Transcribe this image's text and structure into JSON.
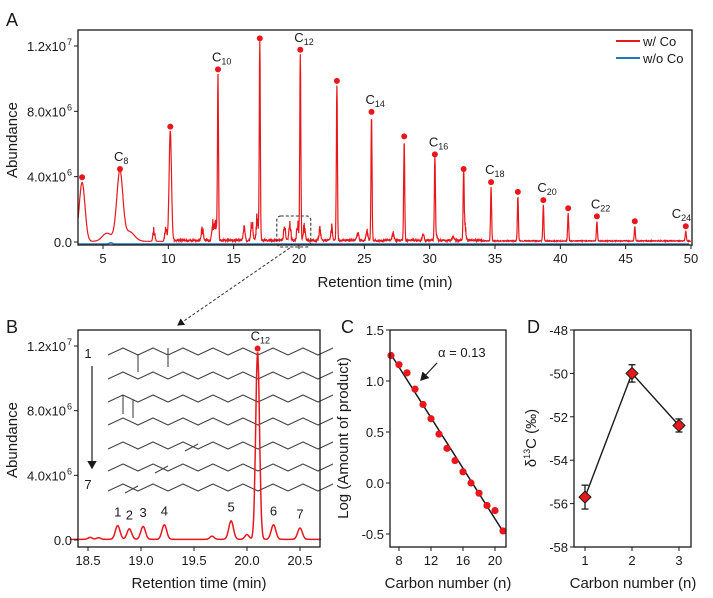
{
  "chart_data": [
    {
      "panel": "A",
      "type": "line",
      "xlabel": "Retention time (min)",
      "ylabel": "Abundance",
      "xlim": [
        3.1,
        50
      ],
      "ylim": [
        -0.2,
        1.27
      ],
      "y_unit_note": "values in units of 1e7",
      "xticks": [
        5,
        10,
        15,
        20,
        25,
        30,
        35,
        40,
        45,
        50
      ],
      "yticks": [
        {
          "value": 0.0,
          "label": "0.0",
          "exp": ""
        },
        {
          "value": 0.4,
          "label": "4.0x10",
          "exp": "6"
        },
        {
          "value": 0.8,
          "label": "8.0x10",
          "exp": "6"
        },
        {
          "value": 1.2,
          "label": "1.2x10",
          "exp": "7"
        }
      ],
      "legend": {
        "placement": "top-right",
        "entries": [
          {
            "name": "w/ Co",
            "color": "#e8171c"
          },
          {
            "name": "w/o Co",
            "color": "#1f77b4"
          }
        ]
      },
      "peaks": [
        {
          "x": 3.4,
          "y": 0.36,
          "label": "",
          "sub": ""
        },
        {
          "x": 6.3,
          "y": 0.41,
          "label": "C",
          "sub": "8"
        },
        {
          "x": 10.15,
          "y": 0.67,
          "label": "",
          "sub": ""
        },
        {
          "x": 13.8,
          "y": 1.02,
          "label": "C",
          "sub": "10"
        },
        {
          "x": 17.0,
          "y": 1.21,
          "label": "",
          "sub": ""
        },
        {
          "x": 20.1,
          "y": 1.14,
          "label": "C",
          "sub": "12"
        },
        {
          "x": 22.9,
          "y": 0.95,
          "label": "",
          "sub": ""
        },
        {
          "x": 25.55,
          "y": 0.76,
          "label": "C",
          "sub": "14"
        },
        {
          "x": 28.05,
          "y": 0.61,
          "label": "",
          "sub": ""
        },
        {
          "x": 30.4,
          "y": 0.5,
          "label": "C",
          "sub": "16"
        },
        {
          "x": 32.6,
          "y": 0.41,
          "label": "",
          "sub": ""
        },
        {
          "x": 34.7,
          "y": 0.33,
          "label": "C",
          "sub": "18"
        },
        {
          "x": 36.75,
          "y": 0.27,
          "label": "",
          "sub": ""
        },
        {
          "x": 38.7,
          "y": 0.22,
          "label": "C",
          "sub": "20"
        },
        {
          "x": 40.6,
          "y": 0.17,
          "label": "",
          "sub": ""
        },
        {
          "x": 42.8,
          "y": 0.12,
          "label": "C",
          "sub": "22"
        },
        {
          "x": 45.7,
          "y": 0.09,
          "label": "",
          "sub": ""
        },
        {
          "x": 49.6,
          "y": 0.06,
          "label": "C",
          "sub": "24"
        }
      ],
      "zoom_box": {
        "x": [
          18.3,
          20.9
        ],
        "y": [
          0.0,
          0.15
        ]
      }
    },
    {
      "panel": "B",
      "type": "line",
      "xlabel": "Retention time (min)",
      "ylabel": "Abundance",
      "xlim": [
        18.33,
        20.7
      ],
      "ylim": [
        -0.04,
        1.27
      ],
      "y_unit_note": "values in units of 1e7",
      "xticks": [
        "18.5",
        "19.0",
        "19.5",
        "20.0",
        "20.5"
      ],
      "yticks": [
        {
          "value": 0.0,
          "label": "0.0",
          "exp": ""
        },
        {
          "value": 0.4,
          "label": "4.0x10",
          "exp": "6"
        },
        {
          "value": 0.8,
          "label": "8.0x10",
          "exp": "6"
        },
        {
          "value": 1.2,
          "label": "1.2x10",
          "exp": "7"
        }
      ],
      "peaks": [
        {
          "x": 18.78,
          "y": 0.085,
          "label": "1"
        },
        {
          "x": 18.89,
          "y": 0.065,
          "label": "2"
        },
        {
          "x": 19.02,
          "y": 0.08,
          "label": "3"
        },
        {
          "x": 19.22,
          "y": 0.09,
          "label": "4"
        },
        {
          "x": 19.85,
          "y": 0.115,
          "label": "5"
        },
        {
          "x": 20.1,
          "y": 1.16,
          "label": "C",
          "sub": "12"
        },
        {
          "x": 20.25,
          "y": 0.09,
          "label": "6"
        },
        {
          "x": 20.5,
          "y": 0.07,
          "label": "7"
        }
      ],
      "minor_peaks": [
        {
          "x": 18.52,
          "y": 0.012
        },
        {
          "x": 18.6,
          "y": 0.01
        },
        {
          "x": 19.67,
          "y": 0.02
        },
        {
          "x": 20.0,
          "y": 0.03
        }
      ],
      "inset": {
        "from_label": "1",
        "to_label": "7",
        "structures": 7
      }
    },
    {
      "panel": "C",
      "type": "scatter",
      "xlabel": "Carbon number (n)",
      "ylabel": "Log (Amount of product)",
      "xlim": [
        7,
        21.2
      ],
      "ylim": [
        -0.6,
        1.5
      ],
      "xticks": [
        8,
        12,
        16,
        20
      ],
      "yticks": [
        "-0.5",
        "0.0",
        "0.5",
        "1.0",
        "1.5"
      ],
      "annotation": "α = 0.13",
      "x": [
        7,
        8,
        9,
        10,
        11,
        12,
        13,
        14,
        15,
        16,
        17,
        18,
        19,
        20,
        21
      ],
      "y": [
        1.25,
        1.16,
        1.08,
        0.92,
        0.77,
        0.63,
        0.48,
        0.34,
        0.22,
        0.11,
        0.0,
        -0.1,
        -0.22,
        -0.27,
        -0.47
      ],
      "fit": {
        "x": [
          7,
          21.2
        ],
        "y": [
          1.26,
          -0.5
        ]
      }
    },
    {
      "panel": "D",
      "type": "line",
      "xlabel": "Carbon number (n)",
      "ylabel": "δ13C (‰)",
      "ylabel_parts": {
        "pre": "δ",
        "sup": "13",
        "post": "C (‰)"
      },
      "xlim": [
        0.75,
        3.25
      ],
      "ylim": [
        -58,
        -48
      ],
      "xticks": [
        1,
        2,
        3
      ],
      "yticks": [
        "-58",
        "-56",
        "-54",
        "-52",
        "-50",
        "-48"
      ],
      "x": [
        1,
        2,
        3
      ],
      "y": [
        -55.7,
        -50.0,
        -52.4
      ],
      "yerr": [
        0.55,
        0.4,
        0.3
      ],
      "marker_color": "#e8171c"
    }
  ],
  "panels": {
    "A": "A",
    "B": "B",
    "C": "C",
    "D": "D"
  }
}
